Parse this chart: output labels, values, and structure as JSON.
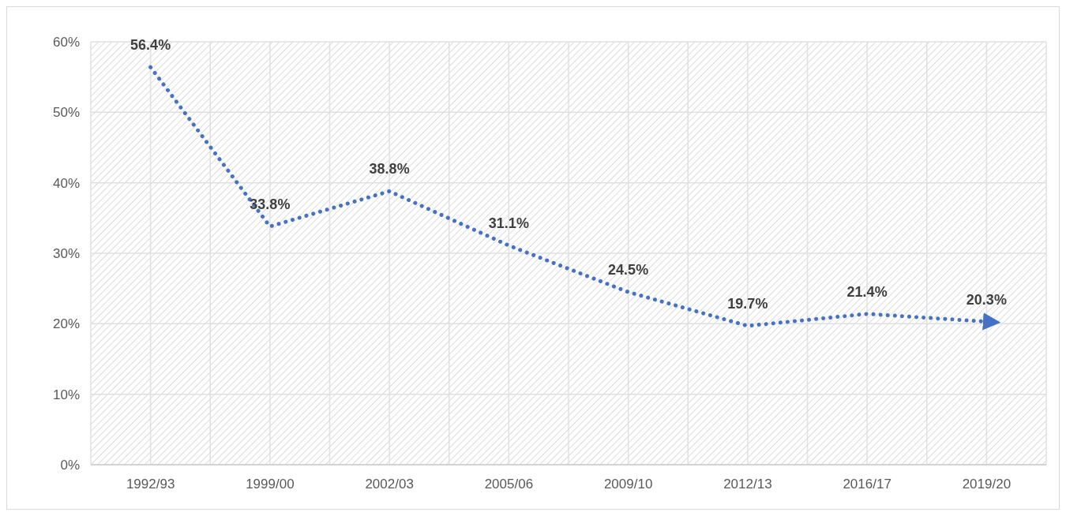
{
  "chart_data": {
    "type": "line",
    "categories": [
      "1992/93",
      "1999/00",
      "2002/03",
      "2005/06",
      "2009/10",
      "2012/13",
      "2016/17",
      "2019/20"
    ],
    "series": [
      {
        "color": "#4472c4",
        "values": [
          56.4,
          33.8,
          38.8,
          31.1,
          24.5,
          19.7,
          21.4,
          20.3
        ],
        "value_labels": [
          "56.4%",
          "33.8%",
          "38.8%",
          "31.1%",
          "24.5%",
          "19.7%",
          "21.4%",
          "20.3%"
        ]
      }
    ],
    "ylim": [
      0,
      60
    ],
    "yticks": [
      {
        "value": 0,
        "label": "0%"
      },
      {
        "value": 10,
        "label": "10%"
      },
      {
        "value": 20,
        "label": "20%"
      },
      {
        "value": 30,
        "label": "30%"
      },
      {
        "value": 40,
        "label": "40%"
      },
      {
        "value": 50,
        "label": "50%"
      },
      {
        "value": 60,
        "label": "60%"
      }
    ],
    "grid": true,
    "line_style": "dotted",
    "marker": "none"
  }
}
